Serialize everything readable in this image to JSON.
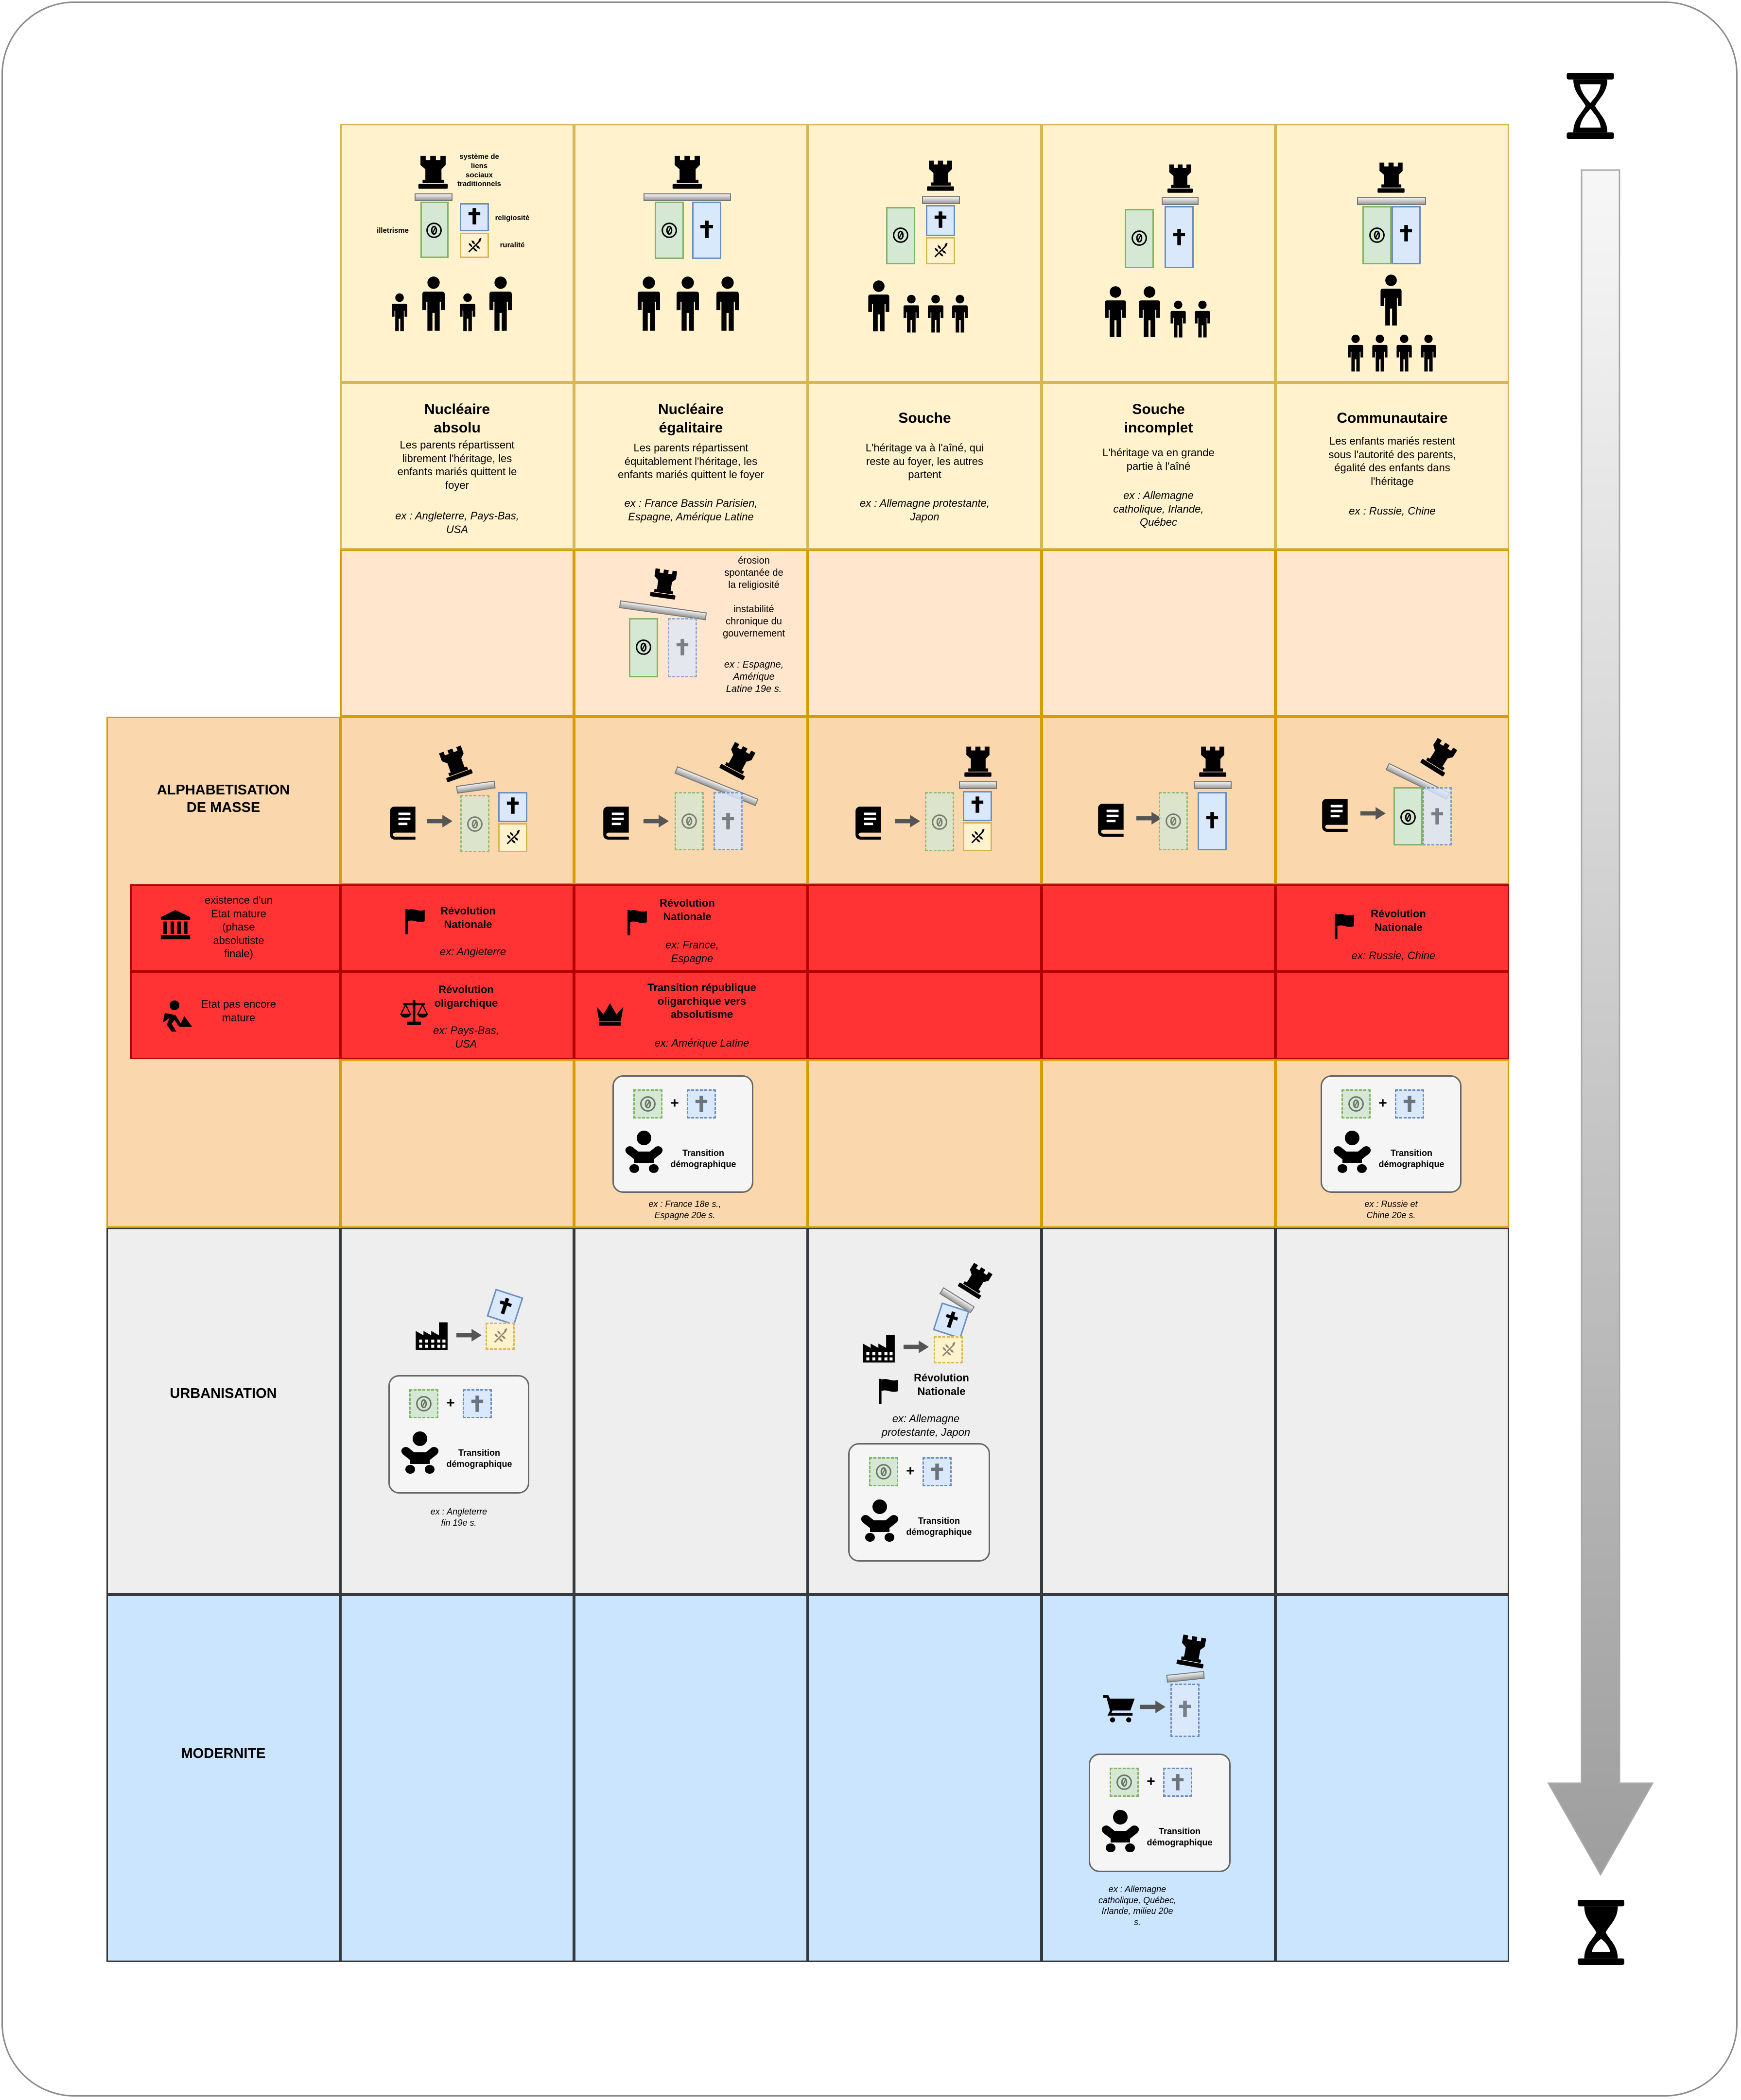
{
  "rows": {
    "alphabetisation": "ALPHABETISATION\nDE MASSE",
    "urbanisation": "URBANISATION",
    "modernite": "MODERNITE"
  },
  "state_rows": {
    "mature": "existence d'un\nEtat mature\n(phase\nabsolutiste\nfinale)",
    "immature": "Etat pas encore\nmature"
  },
  "legend": {
    "liens": "système de\nliens\nsociaux\ntraditionnels",
    "illetrisme": "illetrisme",
    "religiosite": "religiosité",
    "ruralite": "ruralité"
  },
  "families": [
    {
      "name": "Nucléaire\nabsolu",
      "desc": "Les parents répartissent\nlibrement l'héritage, les\nenfants mariés quittent le\nfoyer",
      "ex": "ex : Angleterre, Pays-Bas,\nUSA"
    },
    {
      "name": "Nucléaire\négalitaire",
      "desc": "Les parents répartissent\néquitablement l'héritage, les\nenfants mariés quittent le foyer",
      "ex": "ex : France Bassin Parisien,\nEspagne, Amérique Latine"
    },
    {
      "name": "Souche",
      "desc": "L'héritage va à l'aîné, qui\nreste au foyer, les autres\npartent",
      "ex": "ex : Allemagne protestante,\nJapon"
    },
    {
      "name": "Souche\nincomplet",
      "desc": "L'héritage va en grande\npartie à l'aîné",
      "ex": "ex : Allemagne\ncatholique, Irlande,\nQuébec"
    },
    {
      "name": "Communautaire",
      "desc": "Les enfants mariés restent\nsous l'autorité des parents,\négalité des enfants dans\nl'héritage",
      "ex": "ex : Russie, Chine"
    }
  ],
  "erosion": {
    "text": "érosion\nspontanée de\nla religiosité\n\ninstabilité\nchronique du\ngouvernement",
    "ex": "ex : Espagne,\nAmérique\nLatine 19e s."
  },
  "revolutions": {
    "abs_mature": {
      "label": "Révolution\nNationale",
      "ex": "ex: Angleterre"
    },
    "ega_mature": {
      "label": "Révolution\nNationale",
      "ex": "ex: France,\nEspagne"
    },
    "com_mature": {
      "label": "Révolution\nNationale",
      "ex": "ex: Russie, Chine"
    },
    "abs_immature": {
      "label": "Révolution\noligarchique",
      "ex": "ex: Pays-Bas,\nUSA"
    },
    "ega_immature": {
      "label": "Transition république\noligarchique vers\nabsolutisme",
      "ex": "ex: Amérique Latine"
    },
    "souche_urban": {
      "label": "Révolution\nNationale",
      "ex": "ex: Allemagne\nprotestante, Japon"
    }
  },
  "transition": {
    "label": "Transition\ndémographique",
    "plus": "+",
    "ex_ega": "ex : France 18e s.,\nEspagne 20e s.",
    "ex_com": "ex : Russie et\nChine 20e s.",
    "ex_abs": "ex : Angleterre\nfin 19e s.",
    "ex_inc": "ex : Allemagne\ncatholique, Québec,\nIrlande, milieu 20e\ns."
  },
  "timeline": {
    "direction": "down",
    "start_icon": "hourglass-start-icon",
    "end_icon": "hourglass-end-icon"
  },
  "colors": {
    "yellow": "#fff2cc",
    "peach": "#ffe6cc",
    "orange": "#fad7ac",
    "red": "#ff3333",
    "grey": "#eeeeee",
    "blue": "#cce5ff",
    "green_box": "#d5e8d4",
    "blue_box": "#dae8fc"
  }
}
